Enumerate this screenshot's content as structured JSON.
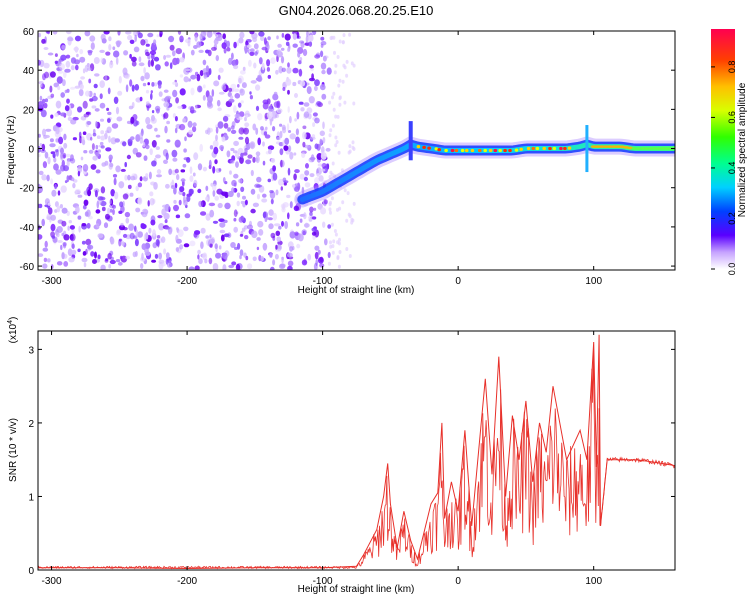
{
  "figure": {
    "title": "GN04.2026.068.20.25.E10"
  },
  "chart_data": [
    {
      "type": "heatmap",
      "title": "GN04.2026.068.20.25.E10",
      "xlabel": "Height of straight line (km)",
      "ylabel": "Frequency (Hz)",
      "xlim": [
        -310,
        160
      ],
      "ylim": [
        -62,
        60
      ],
      "xticks": [
        -300,
        -200,
        -100,
        0,
        100
      ],
      "yticks": [
        60,
        40,
        20,
        0,
        -20,
        -40,
        -60
      ],
      "noise_region_x": [
        -310,
        -95
      ],
      "ridge": {
        "x": [
          -115,
          -100,
          -90,
          -80,
          -70,
          -60,
          -50,
          -40,
          -35,
          -30,
          -20,
          -10,
          0,
          10,
          20,
          30,
          40,
          50,
          60,
          70,
          80,
          90,
          95,
          100,
          110,
          120,
          130,
          140,
          150,
          160
        ],
        "freq": [
          -26,
          -22,
          -18,
          -14,
          -10,
          -6,
          -3,
          0,
          2,
          1,
          0,
          -1,
          -1,
          -1,
          -1,
          -1,
          -1,
          0,
          0,
          0,
          0,
          1,
          2,
          1,
          1,
          1,
          0,
          0,
          0,
          0
        ]
      },
      "colorbar": {
        "label": "Normalized spectral amplitude",
        "range": [
          0,
          0.95
        ],
        "ticks": [
          "0.8",
          "0.6",
          "0.4",
          "0.2",
          "0.0"
        ],
        "tick_values": [
          0.8,
          0.6,
          0.4,
          0.2,
          0.0
        ]
      }
    },
    {
      "type": "line",
      "xlabel": "Height of straight line (km)",
      "ylabel": "SNR (10 * v/v)",
      "scale_label": "(x10",
      "scale_exp": "4",
      "scale_close": ")",
      "xlim": [
        -310,
        160
      ],
      "ylim": [
        0,
        3.25
      ],
      "xticks": [
        -300,
        -200,
        -100,
        0,
        100
      ],
      "yticks": [
        0,
        1,
        2,
        3
      ],
      "color": "#e8302a",
      "series": [
        {
          "name": "SNR",
          "x": [
            -310,
            -250,
            -200,
            -150,
            -100,
            -75,
            -70,
            -60,
            -55,
            -52,
            -50,
            -45,
            -40,
            -35,
            -30,
            -20,
            -15,
            -12,
            -10,
            -5,
            0,
            5,
            10,
            20,
            25,
            30,
            35,
            40,
            45,
            50,
            55,
            60,
            65,
            70,
            80,
            90,
            95,
            100,
            102,
            104,
            105,
            110,
            120,
            130,
            140,
            150,
            160
          ],
          "y": [
            0.03,
            0.03,
            0.02,
            0.03,
            0.03,
            0.05,
            0.2,
            0.55,
            1.0,
            1.45,
            0.9,
            0.3,
            0.8,
            0.4,
            0.15,
            0.9,
            1.05,
            2.0,
            0.7,
            1.2,
            0.8,
            1.9,
            0.6,
            2.6,
            1.3,
            2.9,
            1.0,
            2.1,
            1.5,
            2.3,
            1.2,
            2.0,
            1.6,
            2.5,
            1.5,
            1.9,
            1.5,
            3.1,
            1.4,
            3.2,
            0.6,
            1.5,
            1.5,
            1.5,
            1.48,
            1.45,
            1.42
          ]
        }
      ]
    }
  ]
}
